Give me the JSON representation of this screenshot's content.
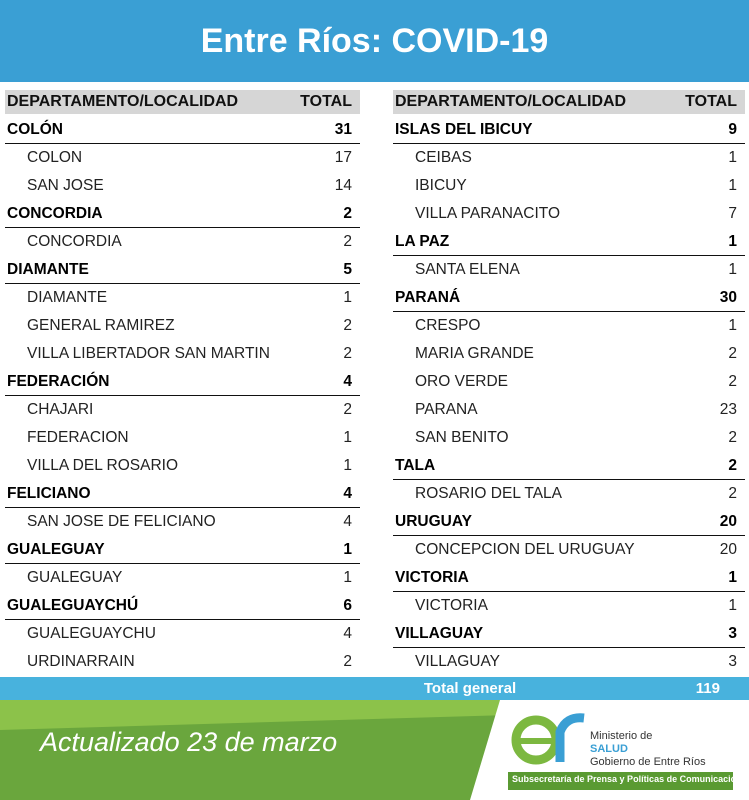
{
  "header": {
    "title": "Entre Ríos: COVID-19"
  },
  "tables": [
    {
      "columns": [
        "DEPARTAMENTO/LOCALIDAD",
        "TOTAL"
      ],
      "departments": [
        {
          "name": "COLÓN",
          "total": 31,
          "localities": [
            {
              "name": "COLON",
              "total": 17
            },
            {
              "name": "SAN JOSE",
              "total": 14
            }
          ]
        },
        {
          "name": "CONCORDIA",
          "total": 2,
          "localities": [
            {
              "name": "CONCORDIA",
              "total": 2
            }
          ]
        },
        {
          "name": "DIAMANTE",
          "total": 5,
          "localities": [
            {
              "name": "DIAMANTE",
              "total": 1
            },
            {
              "name": "GENERAL RAMIREZ",
              "total": 2
            },
            {
              "name": "VILLA LIBERTADOR SAN MARTIN",
              "total": 2
            }
          ]
        },
        {
          "name": "FEDERACIÓN",
          "total": 4,
          "localities": [
            {
              "name": "CHAJARI",
              "total": 2
            },
            {
              "name": "FEDERACION",
              "total": 1
            },
            {
              "name": "VILLA DEL ROSARIO",
              "total": 1
            }
          ]
        },
        {
          "name": "FELICIANO",
          "total": 4,
          "localities": [
            {
              "name": "SAN JOSE DE FELICIANO",
              "total": 4
            }
          ]
        },
        {
          "name": "GUALEGUAY",
          "total": 1,
          "localities": [
            {
              "name": "GUALEGUAY",
              "total": 1
            }
          ]
        },
        {
          "name": "GUALEGUAYCHÚ",
          "total": 6,
          "localities": [
            {
              "name": "GUALEGUAYCHU",
              "total": 4
            },
            {
              "name": "URDINARRAIN",
              "total": 2
            }
          ]
        }
      ]
    },
    {
      "columns": [
        "DEPARTAMENTO/LOCALIDAD",
        "TOTAL"
      ],
      "departments": [
        {
          "name": "ISLAS DEL IBICUY",
          "total": 9,
          "localities": [
            {
              "name": "CEIBAS",
              "total": 1
            },
            {
              "name": "IBICUY",
              "total": 1
            },
            {
              "name": "VILLA PARANACITO",
              "total": 7
            }
          ]
        },
        {
          "name": "LA PAZ",
          "total": 1,
          "localities": [
            {
              "name": "SANTA ELENA",
              "total": 1
            }
          ]
        },
        {
          "name": "PARANÁ",
          "total": 30,
          "localities": [
            {
              "name": "CRESPO",
              "total": 1
            },
            {
              "name": "MARIA GRANDE",
              "total": 2
            },
            {
              "name": "ORO VERDE",
              "total": 2
            },
            {
              "name": "PARANA",
              "total": 23
            },
            {
              "name": "SAN BENITO",
              "total": 2
            }
          ]
        },
        {
          "name": "TALA",
          "total": 2,
          "localities": [
            {
              "name": "ROSARIO DEL TALA",
              "total": 2
            }
          ]
        },
        {
          "name": "URUGUAY",
          "total": 20,
          "localities": [
            {
              "name": "CONCEPCION DEL URUGUAY",
              "total": 20
            }
          ]
        },
        {
          "name": "VICTORIA",
          "total": 1,
          "localities": [
            {
              "name": "VICTORIA",
              "total": 1
            }
          ]
        },
        {
          "name": "VILLAGUAY",
          "total": 3,
          "localities": [
            {
              "name": "VILLAGUAY",
              "total": 3
            }
          ]
        }
      ]
    }
  ],
  "total": {
    "label": "Total general",
    "value": 119
  },
  "footer": {
    "updated": "Actualizado 23 de marzo",
    "logo": {
      "line1": "Ministerio de",
      "line2": "SALUD",
      "line3": "Gobierno de Entre Ríos",
      "subtitle": "Subsecretaría de Prensa y Políticas de Comunicación"
    }
  }
}
